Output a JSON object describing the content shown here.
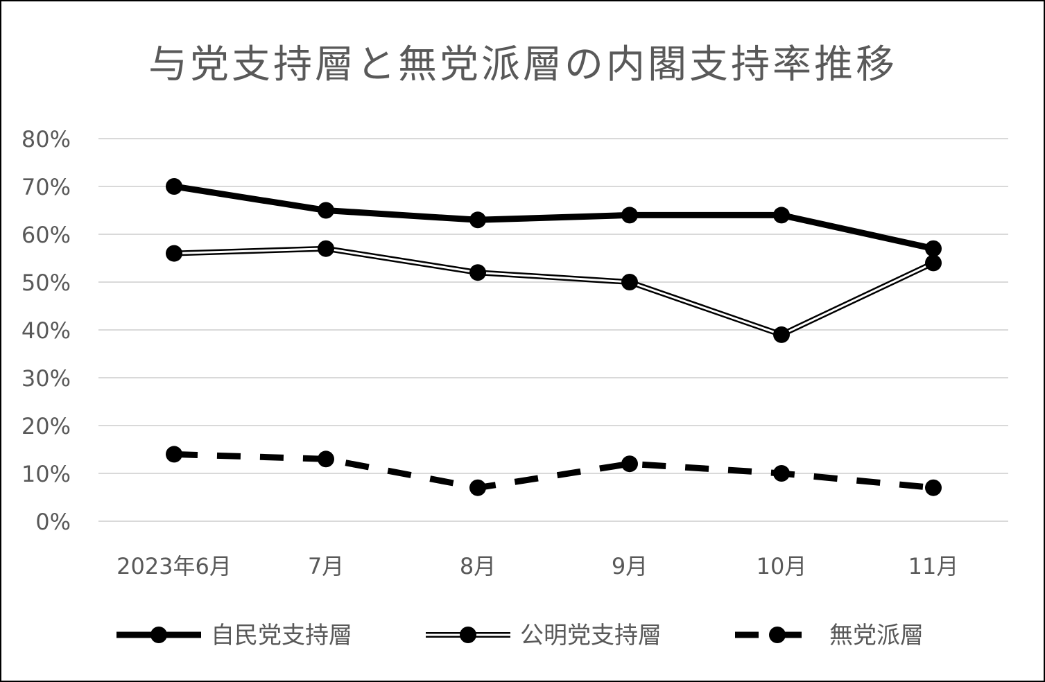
{
  "chart_data": {
    "type": "line",
    "title": "与党支持層と無党派層の内閣支持率推移",
    "categories": [
      "2023年6月",
      "7月",
      "8月",
      "9月",
      "10月",
      "11月"
    ],
    "y_ticks": [
      "0%",
      "10%",
      "20%",
      "30%",
      "40%",
      "50%",
      "60%",
      "70%",
      "80%"
    ],
    "ylim": [
      0,
      80
    ],
    "grid": true,
    "legend_position": "bottom",
    "series": [
      {
        "name": "自民党支持層",
        "style": "thick-solid",
        "values": [
          70,
          65,
          63,
          64,
          64,
          57
        ]
      },
      {
        "name": "公明党支持層",
        "style": "double-line",
        "values": [
          56,
          57,
          52,
          50,
          39,
          54
        ]
      },
      {
        "name": "無党派層",
        "style": "dashed",
        "values": [
          14,
          13,
          7,
          12,
          10,
          7
        ]
      }
    ],
    "colors": {
      "line": "#000000",
      "grid": "#d9d9d9",
      "text": "#595959"
    }
  }
}
